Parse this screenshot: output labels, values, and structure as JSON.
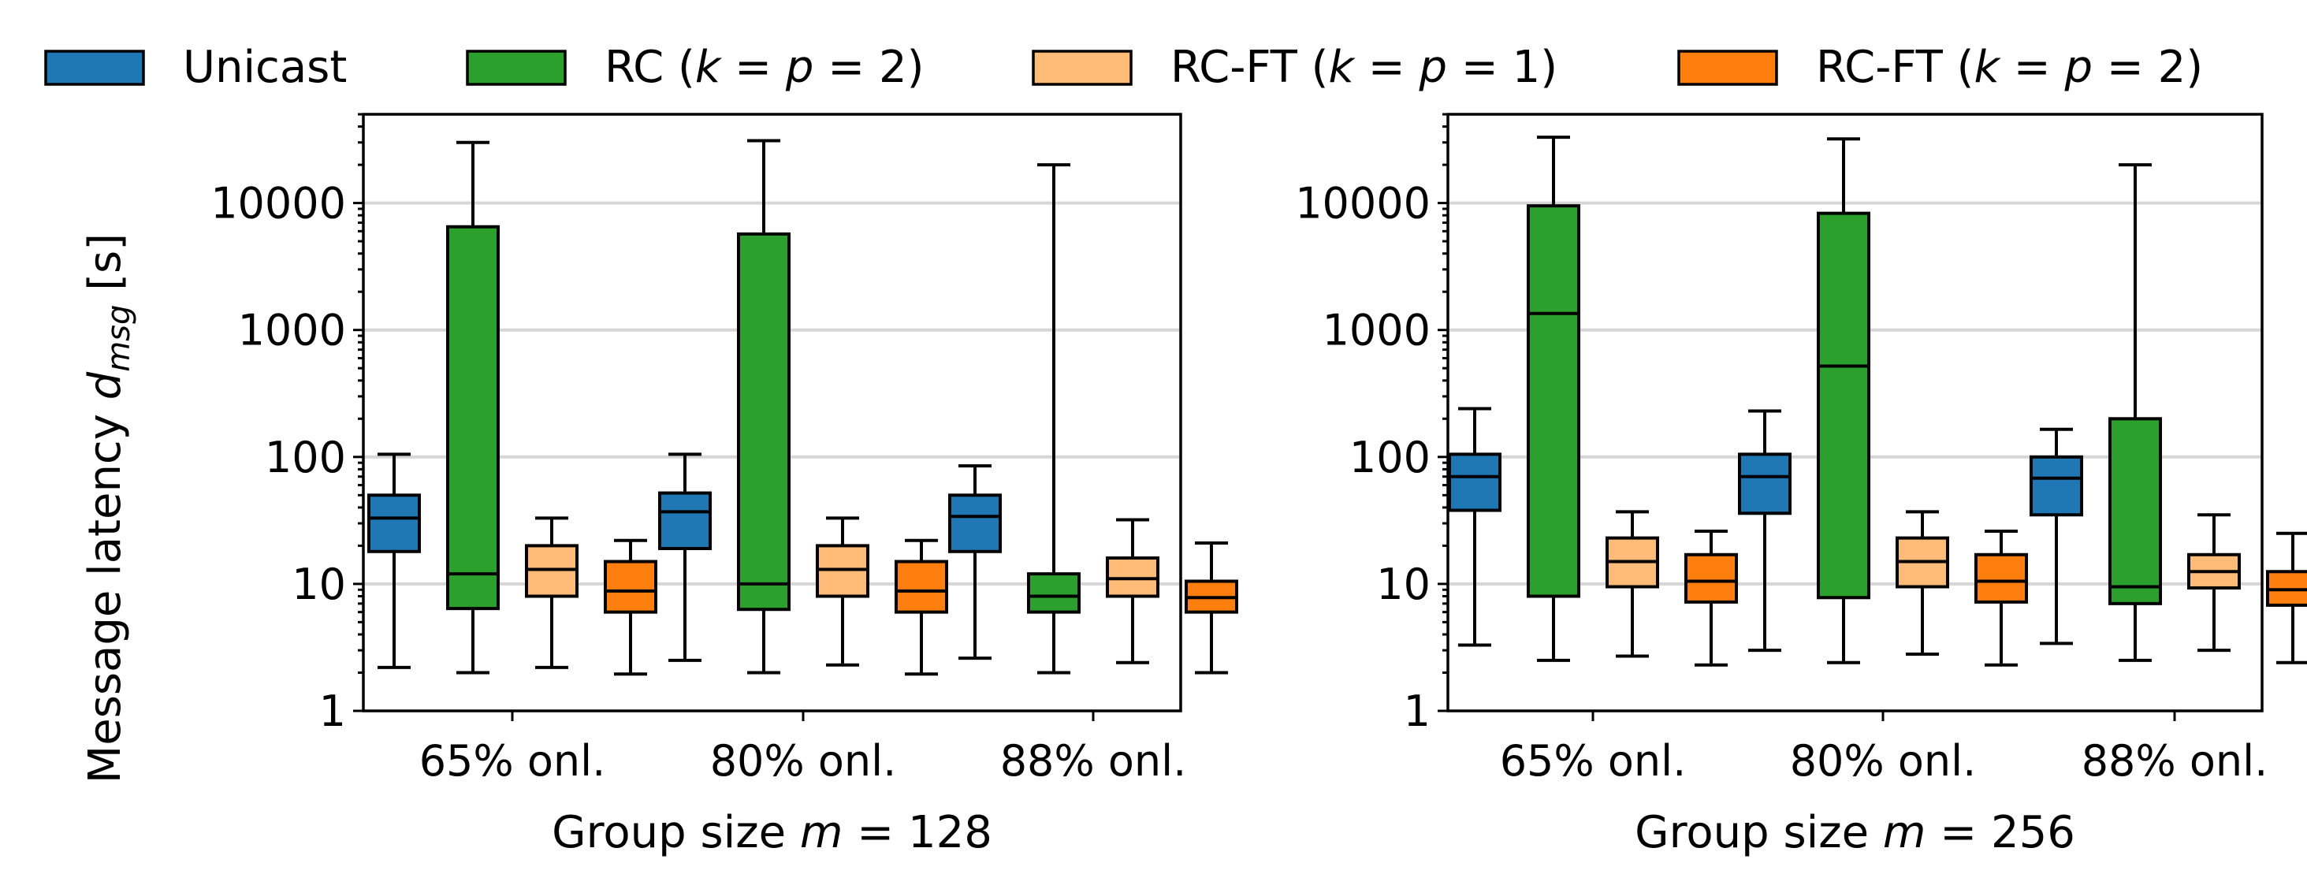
{
  "chart_data": {
    "type": "boxplot",
    "yscale": "log",
    "ylim": [
      1,
      50000
    ],
    "y_ticks": [
      1,
      10,
      100,
      1000,
      10000
    ],
    "y_tick_labels": [
      "1",
      "10",
      "100",
      "1000",
      "10000"
    ],
    "ylabel_parts": {
      "text": "Message latency ",
      "var": "d",
      "sub": "msg",
      "unit": " [s]"
    },
    "grid": "horizontal major",
    "legend_position": "top, outside, single row",
    "legend": [
      {
        "pre": "Unicast",
        "math": ""
      },
      {
        "pre": "RC (",
        "math": "k = p = 2"
      },
      {
        "pre": "RC-FT (",
        "math": "k = p = 1"
      },
      {
        "pre": "RC-FT (",
        "math": "k = p = 2"
      }
    ],
    "series_colors": [
      "#1f77b4",
      "#2ca02c",
      "#ffbb78",
      "#ff7f0e"
    ],
    "categories": [
      "65% onl.",
      "80% onl.",
      "88% onl."
    ],
    "panels": [
      {
        "xlabel": {
          "pre": "Group size ",
          "math": "m = 128"
        },
        "groups": [
          [
            {
              "whislo": 2.2,
              "q1": 18,
              "med": 33,
              "q3": 50,
              "whishi": 105
            },
            {
              "whislo": 2.0,
              "q1": 6.4,
              "med": 12,
              "q3": 6500,
              "whishi": 30000
            },
            {
              "whislo": 2.2,
              "q1": 8.0,
              "med": 13,
              "q3": 20,
              "whishi": 33
            },
            {
              "whislo": 1.95,
              "q1": 6.0,
              "med": 8.8,
              "q3": 15,
              "whishi": 22
            }
          ],
          [
            {
              "whislo": 2.5,
              "q1": 19,
              "med": 37,
              "q3": 52,
              "whishi": 105
            },
            {
              "whislo": 2.0,
              "q1": 6.3,
              "med": 10,
              "q3": 5700,
              "whishi": 31000
            },
            {
              "whislo": 2.3,
              "q1": 8.0,
              "med": 13,
              "q3": 20,
              "whishi": 33
            },
            {
              "whislo": 1.95,
              "q1": 6.0,
              "med": 8.8,
              "q3": 15,
              "whishi": 22
            }
          ],
          [
            {
              "whislo": 2.6,
              "q1": 18,
              "med": 34,
              "q3": 50,
              "whishi": 85
            },
            {
              "whislo": 2.0,
              "q1": 6.0,
              "med": 8.0,
              "q3": 12,
              "whishi": 20000
            },
            {
              "whislo": 2.4,
              "q1": 8.0,
              "med": 11,
              "q3": 16,
              "whishi": 32
            },
            {
              "whislo": 2.0,
              "q1": 6.0,
              "med": 7.8,
              "q3": 10.5,
              "whishi": 21
            }
          ]
        ]
      },
      {
        "xlabel": {
          "pre": "Group size ",
          "math": "m = 256"
        },
        "groups": [
          [
            {
              "whislo": 3.3,
              "q1": 38,
              "med": 70,
              "q3": 105,
              "whishi": 240
            },
            {
              "whislo": 2.5,
              "q1": 8.0,
              "med": 1350,
              "q3": 9500,
              "whishi": 33000
            },
            {
              "whislo": 2.7,
              "q1": 9.5,
              "med": 15,
              "q3": 23,
              "whishi": 37
            },
            {
              "whislo": 2.3,
              "q1": 7.2,
              "med": 10.5,
              "q3": 17,
              "whishi": 26
            }
          ],
          [
            {
              "whislo": 3.0,
              "q1": 36,
              "med": 70,
              "q3": 105,
              "whishi": 230
            },
            {
              "whislo": 2.4,
              "q1": 7.8,
              "med": 520,
              "q3": 8300,
              "whishi": 32000
            },
            {
              "whislo": 2.8,
              "q1": 9.5,
              "med": 15,
              "q3": 23,
              "whishi": 37
            },
            {
              "whislo": 2.3,
              "q1": 7.2,
              "med": 10.5,
              "q3": 17,
              "whishi": 26
            }
          ],
          [
            {
              "whislo": 3.4,
              "q1": 35,
              "med": 68,
              "q3": 100,
              "whishi": 165
            },
            {
              "whislo": 2.5,
              "q1": 7.0,
              "med": 9.5,
              "q3": 200,
              "whishi": 20000
            },
            {
              "whislo": 3.0,
              "q1": 9.3,
              "med": 12.5,
              "q3": 17,
              "whishi": 35
            },
            {
              "whislo": 2.4,
              "q1": 6.8,
              "med": 9.0,
              "q3": 12.5,
              "whishi": 25
            }
          ]
        ]
      }
    ]
  }
}
